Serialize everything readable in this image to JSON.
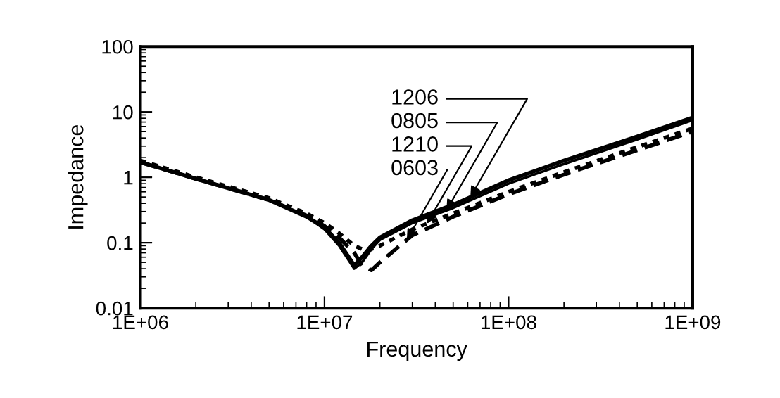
{
  "chart_data": {
    "type": "line",
    "xlabel": "Frequency",
    "ylabel": "Impedance",
    "log": "xy",
    "grid": false,
    "legend": false,
    "x": [
      1000000,
      2000000,
      5000000,
      8000000,
      10000000,
      12000000,
      14500000,
      16000000,
      18000000,
      20000000,
      30000000,
      50000000,
      100000000,
      200000000,
      500000000,
      1000000000
    ],
    "series": [
      {
        "name": "1206",
        "color": "#000000",
        "line_style": "solid",
        "values": [
          1.7,
          0.95,
          0.45,
          0.25,
          0.17,
          0.1,
          0.045,
          0.06,
          0.09,
          0.12,
          0.22,
          0.38,
          0.9,
          1.8,
          4.2,
          8.2
        ]
      },
      {
        "name": "0805",
        "color": "#000000",
        "line_style": "solid",
        "values": [
          1.7,
          0.95,
          0.45,
          0.25,
          0.16,
          0.09,
          0.04,
          0.05,
          0.08,
          0.11,
          0.2,
          0.34,
          0.8,
          1.6,
          3.8,
          7.5
        ]
      },
      {
        "name": "1210",
        "color": "#000000",
        "line_style": "dotted",
        "values": [
          1.8,
          1.0,
          0.48,
          0.28,
          0.2,
          0.14,
          0.09,
          0.08,
          0.08,
          0.09,
          0.16,
          0.28,
          0.6,
          1.2,
          2.9,
          5.6
        ]
      },
      {
        "name": "0603",
        "color": "#000000",
        "line_style": "dashed",
        "values": [
          1.7,
          0.95,
          0.45,
          0.26,
          0.18,
          0.12,
          0.07,
          0.045,
          0.038,
          0.05,
          0.13,
          0.25,
          0.55,
          1.1,
          2.6,
          5.0
        ]
      }
    ],
    "xlim": [
      1000000,
      1000000000
    ],
    "ylim": [
      0.01,
      100
    ],
    "xticks": [
      {
        "value": 1000000,
        "label": "1E+06"
      },
      {
        "value": 10000000,
        "label": "1E+07"
      },
      {
        "value": 100000000,
        "label": "1E+08"
      },
      {
        "value": 1000000000,
        "label": "1E+09"
      }
    ],
    "yticks": [
      0.01,
      0.1,
      1,
      10,
      100
    ]
  }
}
